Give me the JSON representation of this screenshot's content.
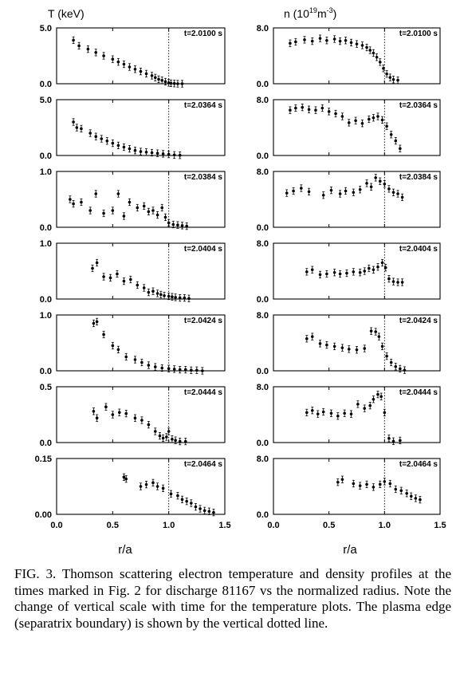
{
  "figure": {
    "caption": "FIG. 3.   Thomson scattering electron temperature and density profiles at the times marked in Fig. 2 for discharge 81167 vs the normalized radius.  Note the change of vertical scale with time for the temperature plots.  The plasma edge (separatrix boundary) is shown by the vertical dotted line.",
    "left_axis_title": "T (keV)",
    "right_axis_title_prefix": "n (10",
    "right_axis_title_exp": "19",
    "right_axis_title_mid": "m",
    "right_axis_title_exp2": "-3",
    "right_axis_title_suffix": ")",
    "xlabel_left": "r/a",
    "xlabel_right": "r/a",
    "x_tick_labels": [
      "0.0",
      "0.5",
      "1.0",
      "1.5"
    ]
  },
  "chart_data": [
    {
      "type": "scatter",
      "panel": "T",
      "time": "t=2.0100 s",
      "xlabel": "r/a",
      "ylabel": "T (keV)",
      "xlim": [
        0,
        1.5
      ],
      "ylim": [
        0,
        5
      ],
      "y_tick_labels": [
        "5.0",
        "0.0"
      ],
      "separatrix": 1.0,
      "x": [
        0.15,
        0.2,
        0.28,
        0.35,
        0.42,
        0.5,
        0.55,
        0.6,
        0.65,
        0.7,
        0.75,
        0.8,
        0.85,
        0.88,
        0.91,
        0.94,
        0.97,
        1.0,
        1.02,
        1.05,
        1.08,
        1.12
      ],
      "y": [
        3.9,
        3.4,
        3.1,
        2.8,
        2.5,
        2.2,
        1.95,
        1.75,
        1.5,
        1.3,
        1.1,
        0.9,
        0.72,
        0.55,
        0.4,
        0.3,
        0.18,
        0.08,
        0.04,
        0.02,
        0.0,
        0.0
      ]
    },
    {
      "type": "scatter",
      "panel": "n",
      "time": "t=2.0100 s",
      "xlabel": "r/a",
      "ylabel": "n (10^19 m^-3)",
      "xlim": [
        0,
        1.5
      ],
      "ylim": [
        0,
        8
      ],
      "y_tick_labels": [
        "8.0",
        "0.0"
      ],
      "separatrix": 1.0,
      "x": [
        0.15,
        0.2,
        0.28,
        0.35,
        0.42,
        0.48,
        0.55,
        0.6,
        0.65,
        0.7,
        0.75,
        0.8,
        0.84,
        0.87,
        0.9,
        0.93,
        0.96,
        0.99,
        1.02,
        1.05,
        1.08,
        1.12
      ],
      "y": [
        5.8,
        6.0,
        6.3,
        6.1,
        6.5,
        6.2,
        6.4,
        6.1,
        6.2,
        5.9,
        5.7,
        5.5,
        5.2,
        4.8,
        4.4,
        3.8,
        3.1,
        2.2,
        1.4,
        0.9,
        0.6,
        0.5
      ]
    },
    {
      "type": "scatter",
      "panel": "T",
      "time": "t=2.0364 s",
      "xlabel": "r/a",
      "ylabel": "T (keV)",
      "xlim": [
        0,
        1.5
      ],
      "ylim": [
        0,
        5
      ],
      "y_tick_labels": [
        "5.0",
        "0.0"
      ],
      "separatrix": 1.0,
      "x": [
        0.15,
        0.18,
        0.22,
        0.3,
        0.35,
        0.4,
        0.45,
        0.5,
        0.55,
        0.6,
        0.65,
        0.7,
        0.75,
        0.8,
        0.85,
        0.9,
        0.95,
        1.0,
        1.05,
        1.1
      ],
      "y": [
        3.0,
        2.5,
        2.4,
        2.0,
        1.7,
        1.5,
        1.3,
        1.1,
        0.9,
        0.75,
        0.6,
        0.45,
        0.35,
        0.3,
        0.25,
        0.2,
        0.15,
        0.1,
        0.05,
        0.02
      ]
    },
    {
      "type": "scatter",
      "panel": "n",
      "time": "t=2.0364 s",
      "xlabel": "r/a",
      "ylabel": "n (10^19 m^-3)",
      "xlim": [
        0,
        1.5
      ],
      "ylim": [
        0,
        8
      ],
      "y_tick_labels": [
        "8.0",
        "0.0"
      ],
      "separatrix": 1.0,
      "x": [
        0.15,
        0.2,
        0.26,
        0.32,
        0.38,
        0.44,
        0.5,
        0.56,
        0.62,
        0.68,
        0.74,
        0.8,
        0.86,
        0.9,
        0.94,
        0.98,
        1.02,
        1.06,
        1.1,
        1.14
      ],
      "y": [
        6.5,
        6.8,
        6.9,
        6.6,
        6.5,
        6.8,
        6.3,
        6.0,
        5.6,
        4.7,
        5.0,
        4.6,
        5.2,
        5.4,
        5.6,
        5.1,
        4.2,
        3.0,
        2.1,
        1.0
      ]
    },
    {
      "type": "scatter",
      "panel": "T",
      "time": "t=2.0384 s",
      "xlabel": "r/a",
      "ylabel": "T (keV)",
      "xlim": [
        0,
        1.5
      ],
      "ylim": [
        0,
        1
      ],
      "y_tick_labels": [
        "1.0",
        "0.0"
      ],
      "separatrix": 1.0,
      "x": [
        0.12,
        0.15,
        0.22,
        0.3,
        0.35,
        0.42,
        0.5,
        0.55,
        0.6,
        0.65,
        0.72,
        0.78,
        0.82,
        0.86,
        0.9,
        0.94,
        0.97,
        1.0,
        1.04,
        1.08,
        1.12,
        1.16
      ],
      "y": [
        0.5,
        0.42,
        0.45,
        0.3,
        0.6,
        0.25,
        0.3,
        0.6,
        0.2,
        0.45,
        0.35,
        0.38,
        0.28,
        0.3,
        0.22,
        0.35,
        0.18,
        0.08,
        0.05,
        0.04,
        0.03,
        0.02
      ]
    },
    {
      "type": "scatter",
      "panel": "n",
      "time": "t=2.0384 s",
      "xlabel": "r/a",
      "ylabel": "n (10^19 m^-3)",
      "xlim": [
        0,
        1.5
      ],
      "ylim": [
        0,
        8
      ],
      "y_tick_labels": [
        "8.0",
        "0.0"
      ],
      "separatrix": 1.0,
      "x": [
        0.12,
        0.18,
        0.25,
        0.32,
        0.45,
        0.52,
        0.6,
        0.65,
        0.72,
        0.78,
        0.84,
        0.88,
        0.92,
        0.96,
        1.0,
        1.04,
        1.08,
        1.12,
        1.16
      ],
      "y": [
        4.9,
        5.2,
        5.6,
        5.1,
        4.6,
        5.3,
        4.8,
        5.2,
        5.0,
        5.4,
        6.3,
        5.8,
        7.1,
        6.6,
        6.2,
        5.5,
        5.0,
        4.8,
        4.3
      ]
    },
    {
      "type": "scatter",
      "panel": "T",
      "time": "t=2.0404 s",
      "xlabel": "r/a",
      "ylabel": "T (keV)",
      "xlim": [
        0,
        1.5
      ],
      "ylim": [
        0,
        1
      ],
      "y_tick_labels": [
        "1.0",
        "0.0"
      ],
      "separatrix": 1.0,
      "x": [
        0.32,
        0.36,
        0.42,
        0.48,
        0.54,
        0.6,
        0.66,
        0.72,
        0.78,
        0.82,
        0.86,
        0.9,
        0.93,
        0.96,
        1.0,
        1.03,
        1.06,
        1.1,
        1.14,
        1.18
      ],
      "y": [
        0.55,
        0.65,
        0.4,
        0.38,
        0.45,
        0.32,
        0.35,
        0.25,
        0.2,
        0.12,
        0.14,
        0.1,
        0.08,
        0.06,
        0.05,
        0.04,
        0.03,
        0.02,
        0.02,
        0.01
      ]
    },
    {
      "type": "scatter",
      "panel": "n",
      "time": "t=2.0404 s",
      "xlabel": "r/a",
      "ylabel": "n (10^19 m^-3)",
      "xlim": [
        0,
        1.5
      ],
      "ylim": [
        0,
        8
      ],
      "y_tick_labels": [
        "8.0",
        "0.0"
      ],
      "separatrix": 1.0,
      "x": [
        0.3,
        0.35,
        0.42,
        0.48,
        0.55,
        0.6,
        0.66,
        0.72,
        0.78,
        0.82,
        0.86,
        0.9,
        0.94,
        0.98,
        1.01,
        1.04,
        1.08,
        1.12,
        1.16
      ],
      "y": [
        3.9,
        4.2,
        3.5,
        3.6,
        3.8,
        3.6,
        3.7,
        3.9,
        3.8,
        4.0,
        4.4,
        4.2,
        4.6,
        5.2,
        4.5,
        2.9,
        2.5,
        2.4,
        2.4
      ]
    },
    {
      "type": "scatter",
      "panel": "T",
      "time": "t=2.0424 s",
      "xlabel": "r/a",
      "ylabel": "T (keV)",
      "xlim": [
        0,
        1.5
      ],
      "ylim": [
        0,
        1
      ],
      "y_tick_labels": [
        "1.0",
        "0.0"
      ],
      "separatrix": 1.0,
      "x": [
        0.33,
        0.36,
        0.42,
        0.5,
        0.55,
        0.62,
        0.7,
        0.76,
        0.82,
        0.88,
        0.94,
        1.0,
        1.05,
        1.1,
        1.15,
        1.2,
        1.25,
        1.3
      ],
      "y": [
        0.85,
        0.88,
        0.65,
        0.45,
        0.38,
        0.25,
        0.2,
        0.15,
        0.1,
        0.07,
        0.05,
        0.04,
        0.03,
        0.02,
        0.02,
        0.01,
        0.01,
        0.0
      ]
    },
    {
      "type": "scatter",
      "panel": "n",
      "time": "t=2.0424 s",
      "xlabel": "r/a",
      "ylabel": "n (10^19 m^-3)",
      "xlim": [
        0,
        1.5
      ],
      "ylim": [
        0,
        8
      ],
      "y_tick_labels": [
        "8.0",
        "0.0"
      ],
      "separatrix": 1.0,
      "x": [
        0.3,
        0.35,
        0.42,
        0.48,
        0.55,
        0.62,
        0.68,
        0.75,
        0.82,
        0.88,
        0.92,
        0.95,
        0.98,
        1.02,
        1.06,
        1.1,
        1.14,
        1.18
      ],
      "y": [
        4.6,
        4.9,
        3.9,
        3.7,
        3.5,
        3.3,
        3.1,
        3.0,
        3.2,
        5.7,
        5.6,
        4.9,
        3.5,
        2.1,
        1.2,
        0.6,
        0.3,
        0.1
      ]
    },
    {
      "type": "scatter",
      "panel": "T",
      "time": "t=2.0444 s",
      "xlabel": "r/a",
      "ylabel": "T (keV)",
      "xlim": [
        0,
        1.5
      ],
      "ylim": [
        0,
        0.5
      ],
      "y_tick_labels": [
        "0.5",
        "0.0"
      ],
      "separatrix": 1.0,
      "x": [
        0.33,
        0.36,
        0.44,
        0.5,
        0.56,
        0.62,
        0.7,
        0.76,
        0.82,
        0.88,
        0.92,
        0.95,
        0.98,
        1.0,
        1.03,
        1.06,
        1.1,
        1.15
      ],
      "y": [
        0.28,
        0.22,
        0.32,
        0.25,
        0.27,
        0.26,
        0.22,
        0.2,
        0.16,
        0.1,
        0.06,
        0.04,
        0.05,
        0.1,
        0.03,
        0.02,
        0.01,
        0.01
      ]
    },
    {
      "type": "scatter",
      "panel": "n",
      "time": "t=2.0444 s",
      "xlabel": "r/a",
      "ylabel": "n (10^19 m^-3)",
      "xlim": [
        0,
        1.5
      ],
      "ylim": [
        0,
        8
      ],
      "y_tick_labels": [
        "8.0",
        "0.0"
      ],
      "separatrix": 1.0,
      "x": [
        0.3,
        0.35,
        0.4,
        0.45,
        0.52,
        0.58,
        0.64,
        0.7,
        0.76,
        0.82,
        0.87,
        0.9,
        0.94,
        0.97,
        1.0,
        1.04,
        1.08,
        1.14
      ],
      "y": [
        4.3,
        4.6,
        4.1,
        4.4,
        4.2,
        3.8,
        4.2,
        4.1,
        5.5,
        4.9,
        5.3,
        6.2,
        6.9,
        6.6,
        4.3,
        0.6,
        0.2,
        0.3
      ]
    },
    {
      "type": "scatter",
      "panel": "T",
      "time": "t=2.0464 s",
      "xlabel": "r/a",
      "ylabel": "T (keV)",
      "xlim": [
        0,
        1.5
      ],
      "ylim": [
        0,
        0.15
      ],
      "y_tick_labels": [
        "0.15",
        "0.00"
      ],
      "separatrix": 1.0,
      "x": [
        0.6,
        0.62,
        0.75,
        0.8,
        0.86,
        0.9,
        0.95,
        1.02,
        1.08,
        1.12,
        1.16,
        1.2,
        1.24,
        1.28,
        1.32,
        1.36,
        1.4
      ],
      "y": [
        0.1,
        0.095,
        0.075,
        0.08,
        0.085,
        0.075,
        0.07,
        0.055,
        0.05,
        0.04,
        0.035,
        0.03,
        0.02,
        0.015,
        0.01,
        0.008,
        0.005
      ]
    },
    {
      "type": "scatter",
      "panel": "n",
      "time": "t=2.0464 s",
      "xlabel": "r/a",
      "ylabel": "n (10^19 m^-3)",
      "xlim": [
        0,
        1.5
      ],
      "ylim": [
        0,
        8
      ],
      "y_tick_labels": [
        "8.0",
        "0.0"
      ],
      "separatrix": 1.0,
      "x": [
        0.58,
        0.62,
        0.72,
        0.78,
        0.84,
        0.9,
        0.96,
        1.0,
        1.05,
        1.1,
        1.15,
        1.2,
        1.24,
        1.28,
        1.32
      ],
      "y": [
        4.6,
        5.0,
        4.4,
        4.1,
        4.3,
        3.9,
        4.3,
        4.7,
        4.4,
        3.6,
        3.4,
        3.0,
        2.6,
        2.3,
        2.1
      ]
    }
  ]
}
